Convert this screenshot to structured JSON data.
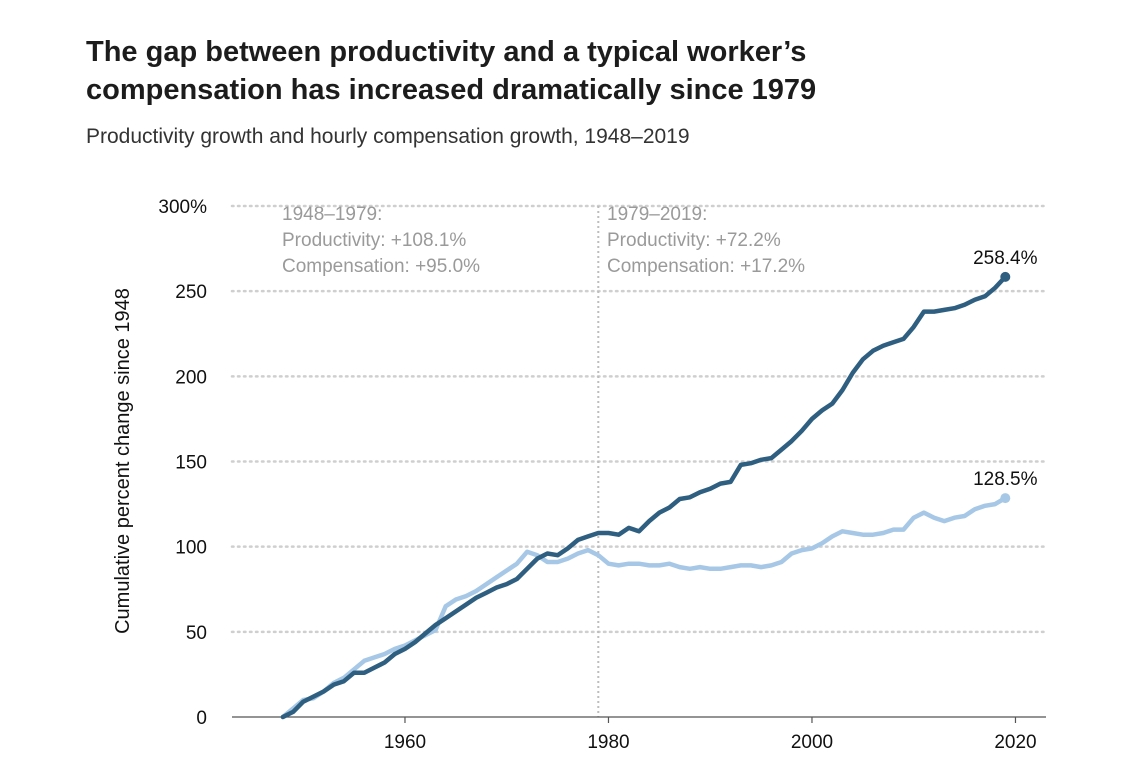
{
  "header": {
    "title_line1": "The gap between productivity and a typical worker’s",
    "title_line2": "compensation has increased dramatically since 1979",
    "subtitle": "Productivity growth and hourly compensation growth, 1948–2019"
  },
  "chart_data": {
    "type": "line",
    "title": "The gap between productivity and a typical worker’s compensation has increased dramatically since 1979",
    "subtitle": "Productivity growth and hourly compensation growth, 1948–2019",
    "xlabel": "",
    "ylabel": "Cumulative percent change since 1948",
    "xlim": [
      1943,
      2023
    ],
    "ylim": [
      0,
      300
    ],
    "x_ticks": [
      1960,
      1980,
      2000,
      2020
    ],
    "y_ticks": [
      {
        "value": 0,
        "label": "0"
      },
      {
        "value": 50,
        "label": "50"
      },
      {
        "value": 100,
        "label": "100"
      },
      {
        "value": 150,
        "label": "150"
      },
      {
        "value": 200,
        "label": "200"
      },
      {
        "value": 250,
        "label": "250"
      },
      {
        "value": 300,
        "label": "300%"
      }
    ],
    "grid": "horizontal-dotted",
    "reference_line": {
      "x": 1979
    },
    "annotations": [
      {
        "period": "1948–1979:",
        "productivity": "Productivity: +108.1%",
        "compensation": "Compensation: +95.0%"
      },
      {
        "period": "1979–2019:",
        "productivity": "Productivity: +72.2%",
        "compensation": "Compensation: +17.2%"
      }
    ],
    "colors": {
      "productivity": "#2f5f80",
      "compensation": "#a6c8e6",
      "grid": "#cfcfcf",
      "reference": "#bdbdbd"
    },
    "series": [
      {
        "key": "productivity",
        "end_label": "258.4%",
        "x": [
          1948,
          1949,
          1950,
          1951,
          1952,
          1953,
          1954,
          1955,
          1956,
          1957,
          1958,
          1959,
          1960,
          1961,
          1962,
          1963,
          1964,
          1965,
          1966,
          1967,
          1968,
          1969,
          1970,
          1971,
          1972,
          1973,
          1974,
          1975,
          1976,
          1977,
          1978,
          1979,
          1980,
          1981,
          1982,
          1983,
          1984,
          1985,
          1986,
          1987,
          1988,
          1989,
          1990,
          1991,
          1992,
          1993,
          1994,
          1995,
          1996,
          1997,
          1998,
          1999,
          2000,
          2001,
          2002,
          2003,
          2004,
          2005,
          2006,
          2007,
          2008,
          2009,
          2010,
          2011,
          2012,
          2013,
          2014,
          2015,
          2016,
          2017,
          2018,
          2019
        ],
        "values": [
          0,
          3,
          9,
          12,
          15,
          19,
          21,
          26,
          26,
          29,
          32,
          37,
          40,
          44,
          49,
          54,
          58,
          62,
          66,
          70,
          73,
          76,
          78,
          81,
          87,
          93,
          96,
          95,
          99,
          104,
          106,
          108,
          108,
          107,
          111,
          109,
          115,
          120,
          123,
          128,
          129,
          132,
          134,
          137,
          138,
          148,
          149,
          151,
          152,
          157,
          162,
          168,
          175,
          180,
          184,
          192,
          202,
          210,
          215,
          218,
          220,
          222,
          229,
          238,
          238,
          239,
          240,
          242,
          245,
          247,
          252,
          258.4
        ]
      },
      {
        "key": "compensation",
        "end_label": "128.5%",
        "x": [
          1948,
          1949,
          1950,
          1951,
          1952,
          1953,
          1954,
          1955,
          1956,
          1957,
          1958,
          1959,
          1960,
          1961,
          1962,
          1963,
          1964,
          1965,
          1966,
          1967,
          1968,
          1969,
          1970,
          1971,
          1972,
          1973,
          1974,
          1975,
          1976,
          1977,
          1978,
          1979,
          1980,
          1981,
          1982,
          1983,
          1984,
          1985,
          1986,
          1987,
          1988,
          1989,
          1990,
          1991,
          1992,
          1993,
          1994,
          1995,
          1996,
          1997,
          1998,
          1999,
          2000,
          2001,
          2002,
          2003,
          2004,
          2005,
          2006,
          2007,
          2008,
          2009,
          2010,
          2011,
          2012,
          2013,
          2014,
          2015,
          2016,
          2017,
          2018,
          2019
        ],
        "values": [
          0,
          5,
          10,
          11,
          15,
          20,
          23,
          28,
          33,
          35,
          37,
          40,
          42,
          45,
          48,
          51,
          65,
          69,
          71,
          74,
          78,
          82,
          86,
          90,
          97,
          95,
          91,
          91,
          93,
          96,
          98,
          95,
          90,
          89,
          90,
          90,
          89,
          89,
          90,
          88,
          87,
          88,
          87,
          87,
          88,
          89,
          89,
          88,
          89,
          91,
          96,
          98,
          99,
          102,
          106,
          109,
          108,
          107,
          107,
          108,
          110,
          110,
          117,
          120,
          117,
          115,
          117,
          118,
          122,
          124,
          125,
          128.5
        ]
      }
    ]
  }
}
